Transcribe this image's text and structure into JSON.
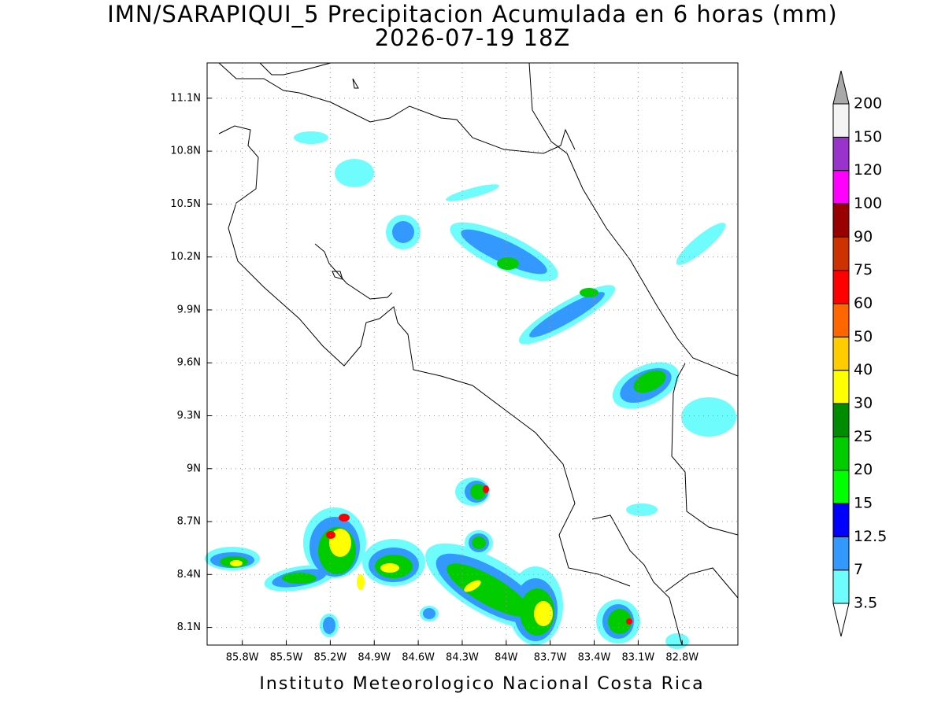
{
  "header": {
    "title": "IMN/SARAPIQUI_5 Precipitacion Acumulada en 6 horas (mm)",
    "subtitle": "2026-07-19 18Z"
  },
  "map": {
    "lon_range": [
      -86.04,
      -82.42
    ],
    "lat_range": [
      8.0,
      11.3
    ],
    "lon_ticks": [
      {
        "value": -85.8,
        "label": "85.8W"
      },
      {
        "value": -85.5,
        "label": "85.5W"
      },
      {
        "value": -85.2,
        "label": "85.2W"
      },
      {
        "value": -84.9,
        "label": "84.9W"
      },
      {
        "value": -84.6,
        "label": "84.6W"
      },
      {
        "value": -84.3,
        "label": "84.3W"
      },
      {
        "value": -84,
        "label": "84W"
      },
      {
        "value": -83.7,
        "label": "83.7W"
      },
      {
        "value": -83.4,
        "label": "83.4W"
      },
      {
        "value": -83.1,
        "label": "83.1W"
      },
      {
        "value": -82.8,
        "label": "82.8W"
      }
    ],
    "lat_ticks": [
      {
        "value": 8.1,
        "label": "8.1N"
      },
      {
        "value": 8.4,
        "label": "8.4N"
      },
      {
        "value": 8.7,
        "label": "8.7N"
      },
      {
        "value": 9,
        "label": "9N"
      },
      {
        "value": 9.3,
        "label": "9.3N"
      },
      {
        "value": 9.6,
        "label": "9.6N"
      },
      {
        "value": 9.9,
        "label": "9.9N"
      },
      {
        "value": 10.2,
        "label": "10.2N"
      },
      {
        "value": 10.5,
        "label": "10.5N"
      },
      {
        "value": 10.8,
        "label": "10.8N"
      },
      {
        "value": 11.1,
        "label": "11.1N"
      }
    ],
    "grid": true
  },
  "colorbar": {
    "levels": [
      3.5,
      7,
      12.5,
      15,
      20,
      25,
      30,
      40,
      50,
      60,
      75,
      90,
      100,
      120,
      150,
      200
    ],
    "colors": [
      "#6ffcfc",
      "#3399ff",
      "#0000ff",
      "#00ff00",
      "#00cc00",
      "#008c00",
      "#ffff00",
      "#ffcc00",
      "#ff6600",
      "#ff0000",
      "#cc3300",
      "#990000",
      "#ff00ff",
      "#9933cc",
      "#f4f4f4"
    ],
    "over_color": "#a9a9a9",
    "under_color": "#ffffff"
  },
  "footer": {
    "text": "Instituto Meteorologico Nacional Costa Rica"
  }
}
